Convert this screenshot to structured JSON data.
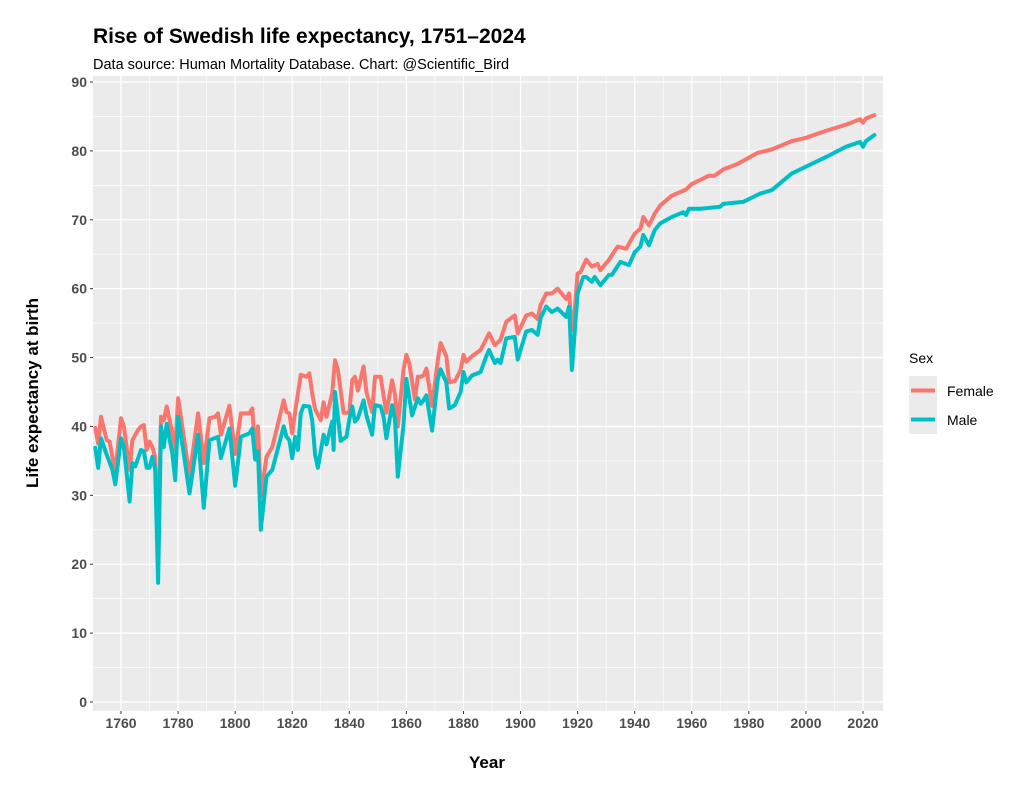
{
  "chart_data": {
    "type": "line",
    "title": "Rise of Swedish life expectancy, 1751–2024",
    "subtitle": "Data source: Human Mortality Database. Chart: @Scientific_Bird",
    "xlabel": "Year",
    "ylabel": "Life expectancy at birth",
    "xlim": [
      1750,
      2025
    ],
    "ylim": [
      0,
      90
    ],
    "xticks": [
      "1760",
      "1780",
      "1800",
      "1820",
      "1840",
      "1860",
      "1880",
      "1900",
      "1920",
      "1940",
      "1960",
      "1980",
      "2000",
      "2020"
    ],
    "yticks": [
      "0",
      "10",
      "20",
      "30",
      "40",
      "50",
      "60",
      "70",
      "80",
      "90"
    ],
    "grid": true,
    "legend": {
      "title": "Sex",
      "placement": "right"
    },
    "series": [
      {
        "name": "Female",
        "color": "#F8766D",
        "points": [
          [
            1751,
            39.8
          ],
          [
            1752,
            37.5
          ],
          [
            1753,
            41.4
          ],
          [
            1755,
            38
          ],
          [
            1756,
            37.8
          ],
          [
            1757,
            35.6
          ],
          [
            1758,
            33.5
          ],
          [
            1760,
            41.2
          ],
          [
            1761,
            40
          ],
          [
            1763,
            33.7
          ],
          [
            1764,
            38
          ],
          [
            1766,
            39.5
          ],
          [
            1767,
            40
          ],
          [
            1768,
            40.2
          ],
          [
            1769,
            36.6
          ],
          [
            1770,
            37.8
          ],
          [
            1771,
            37
          ],
          [
            1772,
            35.5
          ],
          [
            1773,
            22
          ],
          [
            1774,
            41.4
          ],
          [
            1775,
            40.9
          ],
          [
            1776,
            42.9
          ],
          [
            1778,
            39
          ],
          [
            1779,
            36.6
          ],
          [
            1780,
            44.1
          ],
          [
            1782,
            38.5
          ],
          [
            1784,
            32.7
          ],
          [
            1787,
            41.9
          ],
          [
            1789,
            34.7
          ],
          [
            1791,
            41.2
          ],
          [
            1793,
            41.4
          ],
          [
            1794,
            41.9
          ],
          [
            1795,
            38.8
          ],
          [
            1798,
            43
          ],
          [
            1800,
            36
          ],
          [
            1801,
            39
          ],
          [
            1802,
            41.9
          ],
          [
            1805,
            41.9
          ],
          [
            1806,
            42.6
          ],
          [
            1807,
            36.6
          ],
          [
            1808,
            40
          ],
          [
            1809,
            29.8
          ],
          [
            1811,
            35.6
          ],
          [
            1813,
            37
          ],
          [
            1817,
            43.8
          ],
          [
            1818,
            42.1
          ],
          [
            1819,
            41.9
          ],
          [
            1820,
            39
          ],
          [
            1821,
            42.1
          ],
          [
            1823,
            47.5
          ],
          [
            1825,
            47.2
          ],
          [
            1826,
            47.7
          ],
          [
            1827,
            44.8
          ],
          [
            1828,
            42.5
          ],
          [
            1830,
            40.9
          ],
          [
            1831,
            43.5
          ],
          [
            1832,
            41.4
          ],
          [
            1834,
            44.8
          ],
          [
            1835,
            49.6
          ],
          [
            1836,
            48.2
          ],
          [
            1838,
            42
          ],
          [
            1840,
            42
          ],
          [
            1841,
            46.7
          ],
          [
            1842,
            47.2
          ],
          [
            1843,
            45.2
          ],
          [
            1845,
            48.7
          ],
          [
            1846,
            45
          ],
          [
            1848,
            42.1
          ],
          [
            1849,
            47.2
          ],
          [
            1851,
            47.2
          ],
          [
            1852,
            44.4
          ],
          [
            1853,
            42
          ],
          [
            1855,
            46.7
          ],
          [
            1856,
            44.6
          ],
          [
            1857,
            40
          ],
          [
            1859,
            48.2
          ],
          [
            1860,
            50.4
          ],
          [
            1861,
            49.2
          ],
          [
            1863,
            43.9
          ],
          [
            1864,
            47.2
          ],
          [
            1865,
            47.2
          ],
          [
            1866,
            47.4
          ],
          [
            1867,
            48.4
          ],
          [
            1869,
            43
          ],
          [
            1871,
            49.6
          ],
          [
            1872,
            52.1
          ],
          [
            1874,
            50.2
          ],
          [
            1875,
            46.4
          ],
          [
            1877,
            46.6
          ],
          [
            1879,
            48.2
          ],
          [
            1880,
            50.4
          ],
          [
            1881,
            49.4
          ],
          [
            1883,
            50.2
          ],
          [
            1886,
            51.1
          ],
          [
            1889,
            53.5
          ],
          [
            1891,
            51.8
          ],
          [
            1893,
            52.6
          ],
          [
            1895,
            55.2
          ],
          [
            1898,
            56.1
          ],
          [
            1899,
            53.5
          ],
          [
            1902,
            56.1
          ],
          [
            1904,
            56.4
          ],
          [
            1906,
            55.6
          ],
          [
            1907,
            57.6
          ],
          [
            1909,
            59.3
          ],
          [
            1911,
            59.3
          ],
          [
            1913,
            60
          ],
          [
            1916,
            58.5
          ],
          [
            1917,
            59.3
          ],
          [
            1918,
            54
          ],
          [
            1919,
            57
          ],
          [
            1920,
            62.2
          ],
          [
            1921,
            62.4
          ],
          [
            1923,
            64.2
          ],
          [
            1925,
            63.2
          ],
          [
            1927,
            63.6
          ],
          [
            1928,
            62.7
          ],
          [
            1931,
            64.2
          ],
          [
            1934,
            66.1
          ],
          [
            1937,
            65.8
          ],
          [
            1940,
            68
          ],
          [
            1942,
            68.7
          ],
          [
            1943,
            70.4
          ],
          [
            1945,
            69.2
          ],
          [
            1947,
            70.9
          ],
          [
            1949,
            72.1
          ],
          [
            1953,
            73.5
          ],
          [
            1958,
            74.4
          ],
          [
            1960,
            75.2
          ],
          [
            1966,
            76.4
          ],
          [
            1968,
            76.4
          ],
          [
            1971,
            77.3
          ],
          [
            1976,
            78.1
          ],
          [
            1979,
            78.8
          ],
          [
            1983,
            79.7
          ],
          [
            1988,
            80.2
          ],
          [
            1995,
            81.4
          ],
          [
            2000,
            81.9
          ],
          [
            2007,
            82.9
          ],
          [
            2014,
            83.8
          ],
          [
            2019,
            84.6
          ],
          [
            2020,
            84.1
          ],
          [
            2021,
            84.7
          ],
          [
            2024,
            85.2
          ]
        ]
      },
      {
        "name": "Male",
        "color": "#00BFC4",
        "points": [
          [
            1751,
            36.9
          ],
          [
            1752,
            34
          ],
          [
            1753,
            38.3
          ],
          [
            1755,
            35.9
          ],
          [
            1757,
            33.7
          ],
          [
            1758,
            31.6
          ],
          [
            1760,
            38.3
          ],
          [
            1761,
            37
          ],
          [
            1763,
            29.1
          ],
          [
            1764,
            34.7
          ],
          [
            1765,
            34.2
          ],
          [
            1767,
            36.6
          ],
          [
            1768,
            36.4
          ],
          [
            1769,
            34
          ],
          [
            1770,
            34
          ],
          [
            1771,
            35.6
          ],
          [
            1772,
            33.7
          ],
          [
            1773,
            17.3
          ],
          [
            1774,
            40
          ],
          [
            1775,
            37
          ],
          [
            1776,
            40.4
          ],
          [
            1778,
            36
          ],
          [
            1779,
            32.2
          ],
          [
            1780,
            41.4
          ],
          [
            1782,
            36
          ],
          [
            1784,
            30.3
          ],
          [
            1787,
            38.8
          ],
          [
            1789,
            28.2
          ],
          [
            1791,
            38
          ],
          [
            1794,
            38.5
          ],
          [
            1795,
            35.4
          ],
          [
            1798,
            39.7
          ],
          [
            1800,
            31.4
          ],
          [
            1802,
            38.5
          ],
          [
            1805,
            39
          ],
          [
            1806,
            39.7
          ],
          [
            1807,
            35.2
          ],
          [
            1808,
            36.4
          ],
          [
            1809,
            25
          ],
          [
            1811,
            32.7
          ],
          [
            1813,
            33.7
          ],
          [
            1817,
            40
          ],
          [
            1818,
            38.5
          ],
          [
            1819,
            38
          ],
          [
            1820,
            35.4
          ],
          [
            1821,
            38.5
          ],
          [
            1822,
            36.6
          ],
          [
            1823,
            41.9
          ],
          [
            1824,
            43
          ],
          [
            1826,
            42.9
          ],
          [
            1827,
            40.9
          ],
          [
            1828,
            35.9
          ],
          [
            1829,
            34
          ],
          [
            1831,
            38.8
          ],
          [
            1832,
            37.4
          ],
          [
            1834,
            40.7
          ],
          [
            1834.5,
            36.6
          ],
          [
            1835,
            45
          ],
          [
            1837,
            37.9
          ],
          [
            1839,
            38.5
          ],
          [
            1840,
            41
          ],
          [
            1841,
            42.9
          ],
          [
            1842,
            40.7
          ],
          [
            1843,
            41.2
          ],
          [
            1845,
            43.8
          ],
          [
            1846,
            41.6
          ],
          [
            1848,
            38.8
          ],
          [
            1849,
            43.1
          ],
          [
            1851,
            42.9
          ],
          [
            1852,
            41.4
          ],
          [
            1853,
            38.3
          ],
          [
            1855,
            43.1
          ],
          [
            1856,
            41
          ],
          [
            1857,
            32.7
          ],
          [
            1859,
            40.2
          ],
          [
            1860,
            46.9
          ],
          [
            1861,
            44.3
          ],
          [
            1862,
            41.6
          ],
          [
            1864,
            44.1
          ],
          [
            1865,
            43.3
          ],
          [
            1866,
            43.8
          ],
          [
            1867,
            44.5
          ],
          [
            1869,
            39.4
          ],
          [
            1871,
            46.9
          ],
          [
            1872,
            48.3
          ],
          [
            1874,
            46.4
          ],
          [
            1875,
            42.6
          ],
          [
            1877,
            43.1
          ],
          [
            1879,
            45
          ],
          [
            1880,
            47.9
          ],
          [
            1881,
            46.4
          ],
          [
            1883,
            47.4
          ],
          [
            1886,
            47.9
          ],
          [
            1888,
            50.2
          ],
          [
            1889,
            51.1
          ],
          [
            1891,
            49.2
          ],
          [
            1892,
            49.7
          ],
          [
            1893,
            49.2
          ],
          [
            1895,
            52.8
          ],
          [
            1898,
            53
          ],
          [
            1899,
            49.7
          ],
          [
            1902,
            53.8
          ],
          [
            1904,
            54
          ],
          [
            1906,
            53.3
          ],
          [
            1907,
            55.7
          ],
          [
            1909,
            57.4
          ],
          [
            1911,
            56.6
          ],
          [
            1913,
            57.1
          ],
          [
            1916,
            55.9
          ],
          [
            1917,
            57.4
          ],
          [
            1918,
            48.2
          ],
          [
            1920,
            59.3
          ],
          [
            1922,
            61.7
          ],
          [
            1923,
            61.7
          ],
          [
            1925,
            61
          ],
          [
            1926,
            61.7
          ],
          [
            1928,
            60.5
          ],
          [
            1931,
            62
          ],
          [
            1932,
            62
          ],
          [
            1935,
            63.9
          ],
          [
            1938,
            63.4
          ],
          [
            1940,
            65.3
          ],
          [
            1942,
            66.1
          ],
          [
            1943,
            67.8
          ],
          [
            1945,
            66.3
          ],
          [
            1947,
            68.5
          ],
          [
            1949,
            69.5
          ],
          [
            1953,
            70.4
          ],
          [
            1957,
            71.1
          ],
          [
            1958,
            70.7
          ],
          [
            1959,
            71.6
          ],
          [
            1963,
            71.6
          ],
          [
            1970,
            71.9
          ],
          [
            1971,
            72.3
          ],
          [
            1978,
            72.6
          ],
          [
            1984,
            73.8
          ],
          [
            1988,
            74.3
          ],
          [
            1995,
            76.7
          ],
          [
            2000,
            77.7
          ],
          [
            2007,
            79.1
          ],
          [
            2014,
            80.6
          ],
          [
            2019,
            81.3
          ],
          [
            2020,
            80.6
          ],
          [
            2021,
            81.4
          ],
          [
            2024,
            82.3
          ]
        ]
      }
    ]
  }
}
